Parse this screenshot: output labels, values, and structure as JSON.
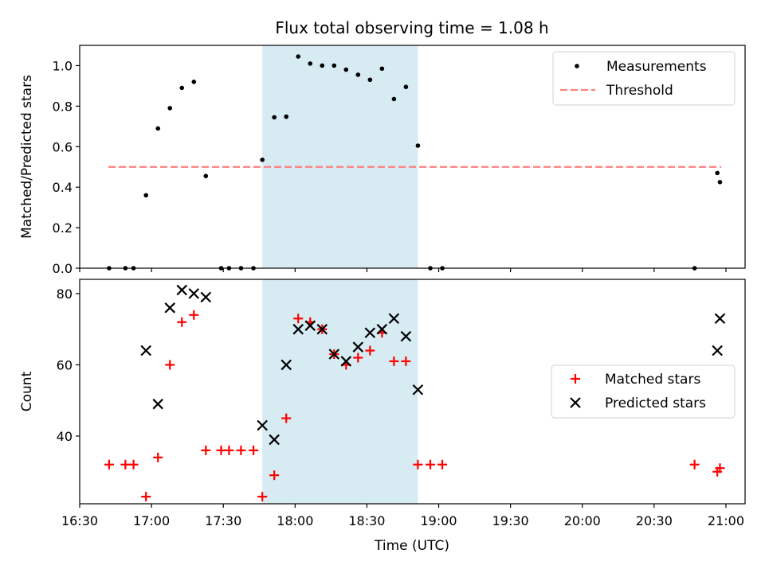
{
  "chart_data": {
    "type": "scatter",
    "title": "Flux total observing time = 1.08 h",
    "xlabel": "Time (UTC)",
    "x_unit": "minutes since 00:00 UTC",
    "xlim": [
      990,
      1268
    ],
    "x_ticks": [
      {
        "value": 990,
        "label": "16:30"
      },
      {
        "value": 1020,
        "label": "17:00"
      },
      {
        "value": 1050,
        "label": "17:30"
      },
      {
        "value": 1080,
        "label": "18:00"
      },
      {
        "value": 1110,
        "label": "18:30"
      },
      {
        "value": 1140,
        "label": "19:00"
      },
      {
        "value": 1170,
        "label": "19:30"
      },
      {
        "value": 1200,
        "label": "20:00"
      },
      {
        "value": 1230,
        "label": "20:30"
      },
      {
        "value": 1260,
        "label": "21:00"
      }
    ],
    "shaded_interval": {
      "x_start": 1066.3,
      "x_end": 1131.3,
      "color": "#add8e6"
    },
    "panels": [
      {
        "id": "ratio",
        "ylabel": "Matched/Predicted stars",
        "ylim": [
          0,
          1.1
        ],
        "y_ticks": [
          {
            "value": 0.0,
            "label": "0.0"
          },
          {
            "value": 0.2,
            "label": "0.2"
          },
          {
            "value": 0.4,
            "label": "0.4"
          },
          {
            "value": 0.6,
            "label": "0.6"
          },
          {
            "value": 0.8,
            "label": "0.8"
          },
          {
            "value": 1.0,
            "label": "1.0"
          }
        ],
        "legend": {
          "position": "upper right",
          "entries": [
            {
              "name": "Measurements",
              "marker": "dot",
              "color": "#000000"
            },
            {
              "name": "Threshold",
              "marker": "dashed-line",
              "color": "#ff7f7f"
            }
          ]
        },
        "threshold": {
          "value": 0.5,
          "x_start": 1002,
          "x_end": 1258
        },
        "series": [
          {
            "name": "Measurements",
            "color": "#000000",
            "x": [
              1002.3,
              1009.1,
              1012.5,
              1017.7,
              1022.7,
              1027.7,
              1032.7,
              1037.7,
              1042.7,
              1049.1,
              1052.4,
              1057.4,
              1062.6,
              1066.3,
              1071.3,
              1076.3,
              1081.3,
              1086.3,
              1091.3,
              1096.3,
              1101.3,
              1106.3,
              1111.3,
              1116.3,
              1121.3,
              1126.3,
              1131.3,
              1136.5,
              1141.5,
              1246.9,
              1256.4,
              1257.5
            ],
            "y": [
              0.0,
              0.0,
              0.0,
              0.36,
              0.69,
              0.79,
              0.89,
              0.92,
              0.455,
              0.0,
              0.0,
              0.0,
              0.0,
              0.535,
              0.745,
              0.748,
              1.045,
              1.01,
              1.0,
              1.0,
              0.98,
              0.955,
              0.93,
              0.985,
              0.835,
              0.895,
              0.605,
              0.0,
              0.0,
              0.0,
              0.47,
              0.425
            ]
          }
        ]
      },
      {
        "id": "counts",
        "ylabel": "Count",
        "ylim": [
          21,
          84
        ],
        "y_ticks": [
          {
            "value": 40,
            "label": "40"
          },
          {
            "value": 60,
            "label": "60"
          },
          {
            "value": 80,
            "label": "80"
          }
        ],
        "legend": {
          "position": "center right",
          "entries": [
            {
              "name": "Matched stars",
              "marker": "plus",
              "color": "#ff0000"
            },
            {
              "name": "Predicted stars",
              "marker": "x",
              "color": "#000000"
            }
          ]
        },
        "series": [
          {
            "name": "Matched stars",
            "marker": "plus",
            "color": "#ff0000",
            "x": [
              1002.3,
              1009.1,
              1012.5,
              1017.7,
              1022.7,
              1027.7,
              1032.7,
              1037.7,
              1042.7,
              1049.1,
              1052.4,
              1057.4,
              1062.6,
              1066.3,
              1071.3,
              1076.3,
              1081.3,
              1086.3,
              1091.3,
              1096.3,
              1101.3,
              1106.3,
              1111.3,
              1116.3,
              1121.3,
              1126.3,
              1131.3,
              1136.5,
              1141.5,
              1246.9,
              1256.4,
              1257.5
            ],
            "y": [
              32,
              32,
              32,
              23,
              34,
              60,
              72,
              74,
              36,
              36,
              36,
              36,
              36,
              23,
              29,
              45,
              73,
              72,
              70,
              63,
              60,
              62,
              64,
              69,
              61,
              61,
              32,
              32,
              32,
              32,
              30,
              31
            ]
          },
          {
            "name": "Predicted stars",
            "marker": "x",
            "color": "#000000",
            "x": [
              1017.7,
              1022.7,
              1027.7,
              1032.7,
              1037.7,
              1042.7,
              1066.3,
              1071.3,
              1076.3,
              1081.3,
              1086.3,
              1091.3,
              1096.3,
              1101.3,
              1106.3,
              1111.3,
              1116.3,
              1121.3,
              1126.3,
              1131.3,
              1256.4,
              1257.5
            ],
            "y": [
              64,
              49,
              76,
              81,
              80,
              79,
              43,
              39,
              60,
              70,
              71,
              70,
              63,
              61,
              65,
              69,
              70,
              73,
              68,
              53,
              64,
              73
            ]
          }
        ]
      }
    ]
  }
}
